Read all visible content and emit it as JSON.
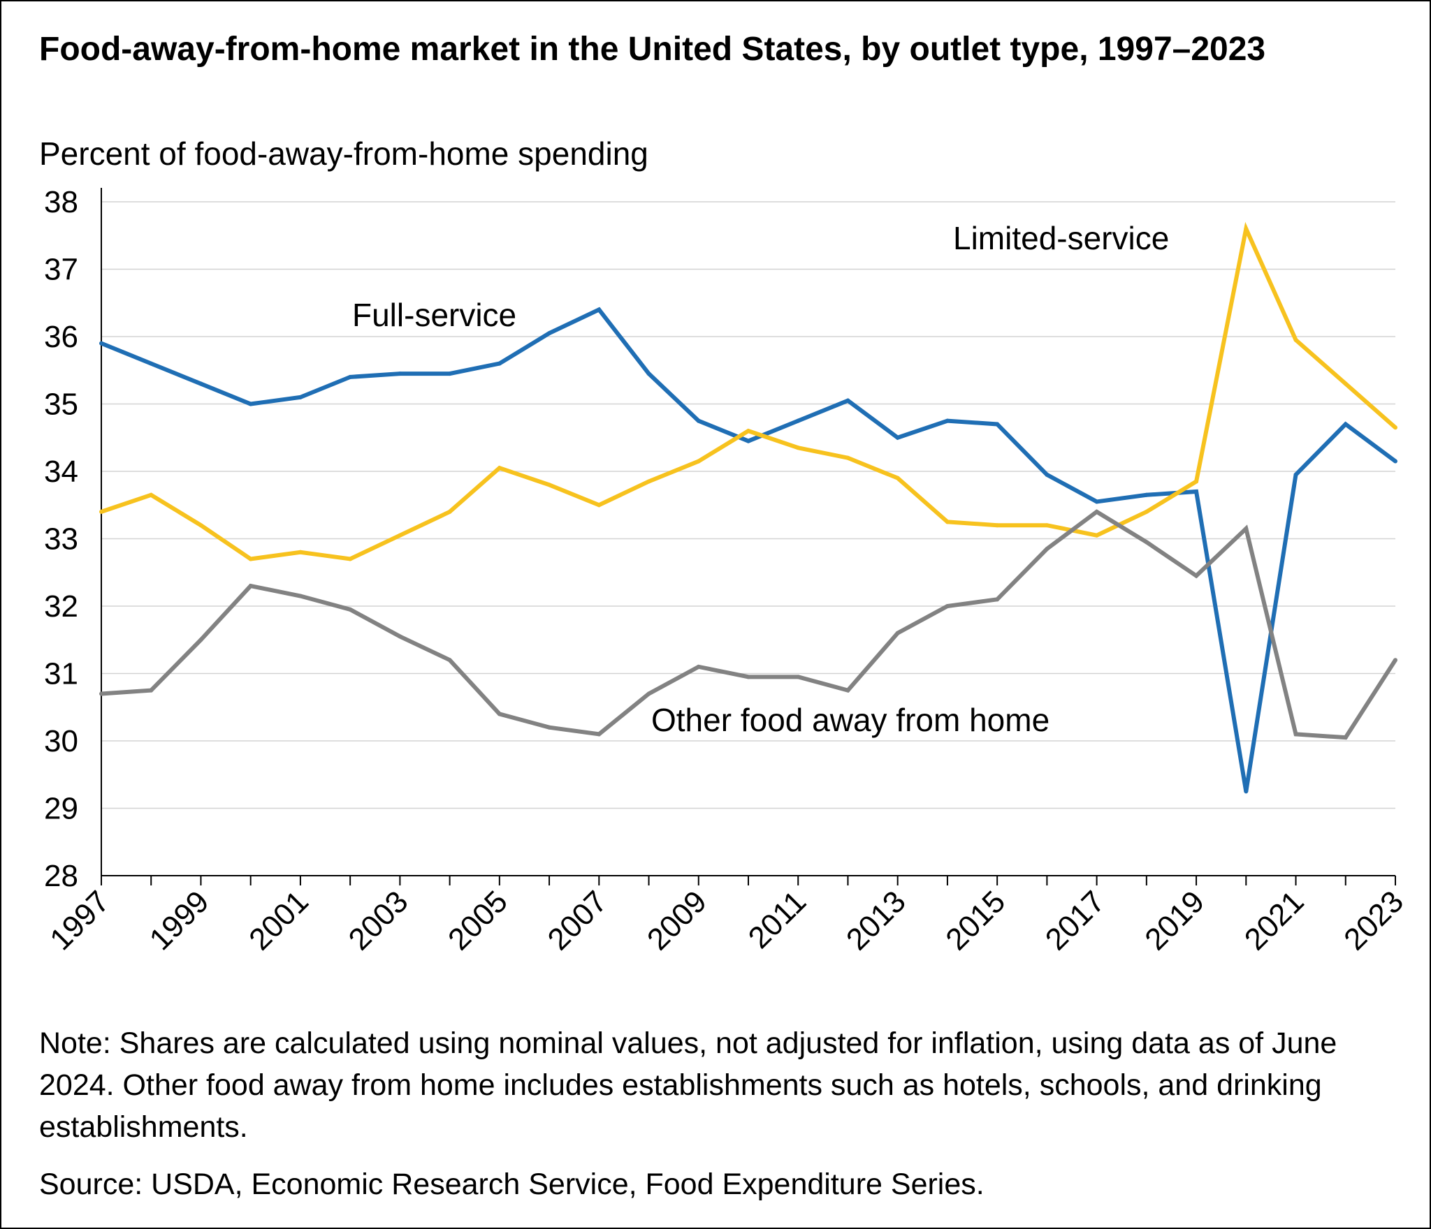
{
  "chart_data": {
    "type": "line",
    "title": "Food-away-from-home market in the United States, by outlet type, 1997–2023",
    "ylabel": "Percent of food-away-from-home spending",
    "xlabel": "",
    "ylim": [
      28,
      38
    ],
    "xlim": [
      1997,
      2023
    ],
    "yticks": [
      "28",
      "29",
      "30",
      "31",
      "32",
      "33",
      "34",
      "35",
      "36",
      "37",
      "38"
    ],
    "xticks": [
      "1997",
      "1999",
      "2001",
      "2003",
      "2005",
      "2007",
      "2009",
      "2011",
      "2013",
      "2015",
      "2017",
      "2019",
      "2021",
      "2023"
    ],
    "grid": "horizontal",
    "legend": "inline labels",
    "x": [
      1997,
      1998,
      1999,
      2000,
      2001,
      2002,
      2003,
      2004,
      2005,
      2006,
      2007,
      2008,
      2009,
      2010,
      2011,
      2012,
      2013,
      2014,
      2015,
      2016,
      2017,
      2018,
      2019,
      2020,
      2021,
      2022,
      2023
    ],
    "series": [
      {
        "name": "Full-service",
        "color": "#1f6eb4",
        "values": [
          35.9,
          35.6,
          35.3,
          35.0,
          35.1,
          35.4,
          35.45,
          35.45,
          35.6,
          36.05,
          36.4,
          35.45,
          34.75,
          34.45,
          34.75,
          35.05,
          34.5,
          34.75,
          34.7,
          33.95,
          33.55,
          33.65,
          33.7,
          29.25,
          33.95,
          34.7,
          34.15
        ]
      },
      {
        "name": "Limited-service",
        "color": "#f7c21e",
        "values": [
          33.4,
          33.65,
          33.2,
          32.7,
          32.8,
          32.7,
          33.05,
          33.4,
          34.05,
          33.8,
          33.5,
          33.85,
          34.15,
          34.6,
          34.35,
          34.2,
          33.9,
          33.25,
          33.2,
          33.2,
          33.05,
          33.4,
          33.85,
          37.6,
          35.95,
          35.3,
          34.65
        ]
      },
      {
        "name": "Other food away from home",
        "color": "#828282",
        "values": [
          30.7,
          30.75,
          31.5,
          32.3,
          32.15,
          31.95,
          31.55,
          31.2,
          30.4,
          30.2,
          30.1,
          30.7,
          31.1,
          30.95,
          30.95,
          30.75,
          31.6,
          32.0,
          32.1,
          32.85,
          33.4,
          32.95,
          32.45,
          33.15,
          30.1,
          30.05,
          31.2
        ]
      }
    ]
  },
  "note": "Note: Shares are calculated using nominal values, not adjusted for inflation, using data as of June 2024. Other food away from home includes establishments such as hotels, schools, and drinking establishments.",
  "source": "Source: USDA, Economic Research Service, Food Expenditure Series."
}
